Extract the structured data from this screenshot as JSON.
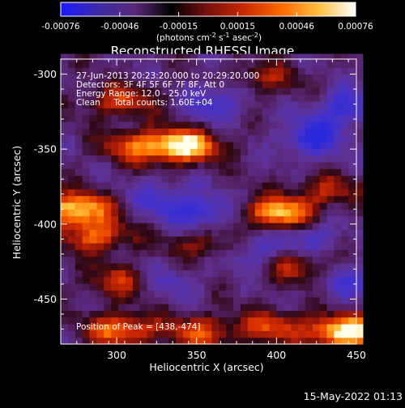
{
  "chart_data": {
    "type": "heatmap",
    "title": "Reconstructed RHESSI Image",
    "xlabel": "Heliocentric X (arcsec)",
    "ylabel": "Heliocentric Y (arcsec)",
    "xlim": [
      265,
      450
    ],
    "ylim": [
      -480,
      -290
    ],
    "xticks": [
      300,
      350,
      400,
      450
    ],
    "yticks": [
      -300,
      -350,
      -400,
      -450
    ],
    "colorbar": {
      "ticks": [
        "-0.00076",
        "-0.00046",
        "-0.00015",
        "0.00015",
        "0.00046",
        "0.00076"
      ],
      "range": [
        -0.00076,
        0.00076
      ],
      "unit_parts": [
        "(photons cm",
        "-2",
        " s",
        "-1",
        " asec",
        "-2",
        ")"
      ],
      "colors": [
        "#1a1aff",
        "#3b2aa8",
        "#5a2a7a",
        "#000000",
        "#7a1010",
        "#cc2a00",
        "#ff6a00",
        "#ffc040",
        "#ffffff"
      ]
    },
    "info_lines": [
      "27-Jun-2013 20:23:20.000 to 20:29:20.000",
      "Detectors: 3F 4F 5F 6F 7F 8F, Att 0",
      "Energy Range: 12.0 - 25.0 keV",
      "Clean     Total counts: 1.60E+04"
    ],
    "peak_label": "Position of Peak = [438,-474]",
    "peak": [
      438,
      -474
    ],
    "bright_sources": [
      {
        "x": 340,
        "y": -350,
        "amp": 0.95
      },
      {
        "x": 310,
        "y": -350,
        "amp": 0.55
      },
      {
        "x": 272,
        "y": -392,
        "amp": 0.9
      },
      {
        "x": 285,
        "y": -410,
        "amp": 0.6
      },
      {
        "x": 400,
        "y": -395,
        "amp": 0.85
      },
      {
        "x": 300,
        "y": -320,
        "amp": 0.5
      },
      {
        "x": 440,
        "y": -474,
        "amp": 1.0
      },
      {
        "x": 300,
        "y": -472,
        "amp": 0.7
      },
      {
        "x": 350,
        "y": -474,
        "amp": 0.55
      },
      {
        "x": 395,
        "y": -470,
        "amp": 0.5
      },
      {
        "x": 300,
        "y": -440,
        "amp": 0.45
      },
      {
        "x": 350,
        "y": -415,
        "amp": 0.4
      },
      {
        "x": 410,
        "y": -430,
        "amp": 0.45
      },
      {
        "x": 390,
        "y": -305,
        "amp": 0.35
      },
      {
        "x": 430,
        "y": -380,
        "amp": 0.4
      }
    ],
    "dark_sources": [
      {
        "x": 420,
        "y": -345,
        "amp": 0.9
      },
      {
        "x": 440,
        "y": -325,
        "amp": 0.75
      },
      {
        "x": 350,
        "y": -395,
        "amp": 0.8
      },
      {
        "x": 360,
        "y": -320,
        "amp": 0.65
      },
      {
        "x": 385,
        "y": -420,
        "amp": 0.6
      },
      {
        "x": 325,
        "y": -385,
        "amp": 0.55
      },
      {
        "x": 420,
        "y": -410,
        "amp": 0.55
      },
      {
        "x": 330,
        "y": -440,
        "amp": 0.45
      },
      {
        "x": 440,
        "y": -440,
        "amp": 0.5
      }
    ]
  },
  "footer_date": "15-May-2022 01:13"
}
